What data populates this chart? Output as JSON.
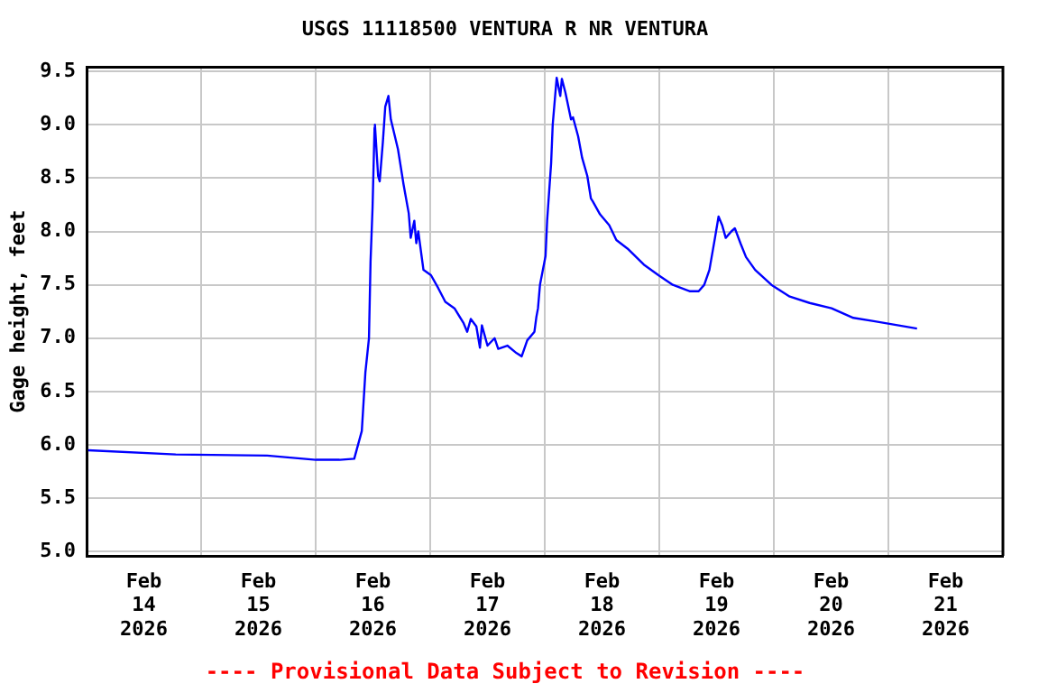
{
  "chart_data": {
    "type": "line",
    "title": "USGS 11118500 VENTURA R NR VENTURA",
    "ylabel": "Gage height, feet",
    "annotations": [
      "---- Provisional Data Subject to Revision ----"
    ],
    "x": [
      "2026-02-14T00:20",
      "2026-02-14T18:40",
      "2026-02-15T13:50",
      "2026-02-16T00:05",
      "2026-02-16T05:00",
      "2026-02-16T08:05",
      "2026-02-16T09:40",
      "2026-02-16T10:25",
      "2026-02-16T11:10",
      "2026-02-16T11:30",
      "2026-02-16T11:55",
      "2026-02-16T12:20",
      "2026-02-16T12:25",
      "2026-02-16T13:05",
      "2026-02-16T13:25",
      "2026-02-16T14:05",
      "2026-02-16T14:35",
      "2026-02-16T15:15",
      "2026-02-16T15:45",
      "2026-02-16T17:15",
      "2026-02-16T18:25",
      "2026-02-16T19:30",
      "2026-02-16T19:55",
      "2026-02-16T20:40",
      "2026-02-16T21:05",
      "2026-02-16T21:30",
      "2026-02-16T22:35",
      "2026-02-17T00:10",
      "2026-02-17T01:40",
      "2026-02-17T03:10",
      "2026-02-17T05:05",
      "2026-02-17T07:00",
      "2026-02-17T07:45",
      "2026-02-17T08:30",
      "2026-02-17T09:40",
      "2026-02-17T10:25",
      "2026-02-17T10:50",
      "2026-02-17T12:00",
      "2026-02-17T13:30",
      "2026-02-17T14:15",
      "2026-02-17T16:10",
      "2026-02-17T18:05",
      "2026-02-17T19:10",
      "2026-02-17T20:20",
      "2026-02-17T21:50",
      "2026-02-17T22:15",
      "2026-02-17T22:35",
      "2026-02-17T23:00",
      "2026-02-18T00:10",
      "2026-02-18T00:30",
      "2026-02-18T01:20",
      "2026-02-18T01:40",
      "2026-02-18T02:30",
      "2026-02-18T03:15",
      "2026-02-18T03:35",
      "2026-02-18T04:20",
      "2026-02-18T05:30",
      "2026-02-18T05:55",
      "2026-02-18T07:00",
      "2026-02-18T07:50",
      "2026-02-18T08:55",
      "2026-02-18T09:40",
      "2026-02-18T10:05",
      "2026-02-18T11:35",
      "2026-02-18T13:30",
      "2026-02-18T15:00",
      "2026-02-18T17:20",
      "2026-02-18T20:45",
      "2026-02-18T23:50",
      "2026-02-19T02:50",
      "2026-02-19T06:20",
      "2026-02-19T08:15",
      "2026-02-19T09:25",
      "2026-02-19T10:30",
      "2026-02-19T11:40",
      "2026-02-19T12:25",
      "2026-02-19T13:10",
      "2026-02-19T13:55",
      "2026-02-19T15:05",
      "2026-02-19T15:50",
      "2026-02-19T17:00",
      "2026-02-19T18:10",
      "2026-02-19T20:05",
      "2026-02-19T23:30",
      "2026-02-20T03:20",
      "2026-02-20T07:30",
      "2026-02-20T12:05",
      "2026-02-20T16:40",
      "2026-02-20T20:55",
      "2026-02-21T02:10",
      "2026-02-21T06:00"
    ],
    "series": [
      {
        "color": "#0000ff",
        "values": [
          5.95,
          5.91,
          5.9,
          5.86,
          5.86,
          5.87,
          6.13,
          6.68,
          7.0,
          7.72,
          8.22,
          8.97,
          9.0,
          8.52,
          8.47,
          8.84,
          9.17,
          9.27,
          9.05,
          8.77,
          8.44,
          8.17,
          7.94,
          8.1,
          7.89,
          8.0,
          7.64,
          7.59,
          7.47,
          7.34,
          7.28,
          7.14,
          7.06,
          7.18,
          7.11,
          6.91,
          7.12,
          6.93,
          7.0,
          6.9,
          6.93,
          6.86,
          6.83,
          6.98,
          7.06,
          7.2,
          7.28,
          7.5,
          7.77,
          8.1,
          8.64,
          9.0,
          9.44,
          9.27,
          9.43,
          9.3,
          9.05,
          9.07,
          8.89,
          8.69,
          8.52,
          8.31,
          8.28,
          8.16,
          8.06,
          7.92,
          7.84,
          7.69,
          7.59,
          7.5,
          7.44,
          7.44,
          7.5,
          7.64,
          7.94,
          8.14,
          8.06,
          7.94,
          8.0,
          8.03,
          7.89,
          7.76,
          7.64,
          7.5,
          7.39,
          7.33,
          7.28,
          7.19,
          7.16,
          7.12,
          7.09
        ]
      }
    ],
    "xlim": [
      "2026-02-14T00:00",
      "2026-02-22T00:00"
    ],
    "xticks": [
      {
        "value": "2026-02-14T00:00",
        "label": null
      },
      {
        "value": "2026-02-14T12:00",
        "label": "Feb 14 2026"
      },
      {
        "value": "2026-02-15T00:00",
        "label": null
      },
      {
        "value": "2026-02-15T12:00",
        "label": "Feb 15 2026"
      },
      {
        "value": "2026-02-16T00:00",
        "label": null
      },
      {
        "value": "2026-02-16T12:00",
        "label": "Feb 16 2026"
      },
      {
        "value": "2026-02-17T00:00",
        "label": null
      },
      {
        "value": "2026-02-17T12:00",
        "label": "Feb 17 2026"
      },
      {
        "value": "2026-02-18T00:00",
        "label": null
      },
      {
        "value": "2026-02-18T12:00",
        "label": "Feb 18 2026"
      },
      {
        "value": "2026-02-19T00:00",
        "label": null
      },
      {
        "value": "2026-02-19T12:00",
        "label": "Feb 19 2026"
      },
      {
        "value": "2026-02-20T00:00",
        "label": null
      },
      {
        "value": "2026-02-20T12:00",
        "label": "Feb 20 2026"
      },
      {
        "value": "2026-02-21T00:00",
        "label": null
      },
      {
        "value": "2026-02-21T12:00",
        "label": "Feb 21 2026"
      },
      {
        "value": "2026-02-22T00:00",
        "label": null
      }
    ],
    "ylim": [
      4.96,
      9.54
    ],
    "yticks": [
      {
        "value": 5,
        "label": "5.0"
      },
      5.5,
      {
        "value": 6,
        "label": "6.0"
      },
      6.5,
      {
        "value": 7,
        "label": "7.0"
      },
      7.5,
      {
        "value": 8,
        "label": "8.0"
      },
      8.5,
      {
        "value": 9,
        "label": "9.0"
      },
      9.5
    ],
    "grid": true,
    "legend": false,
    "marker": "none",
    "line_style": "solid"
  }
}
